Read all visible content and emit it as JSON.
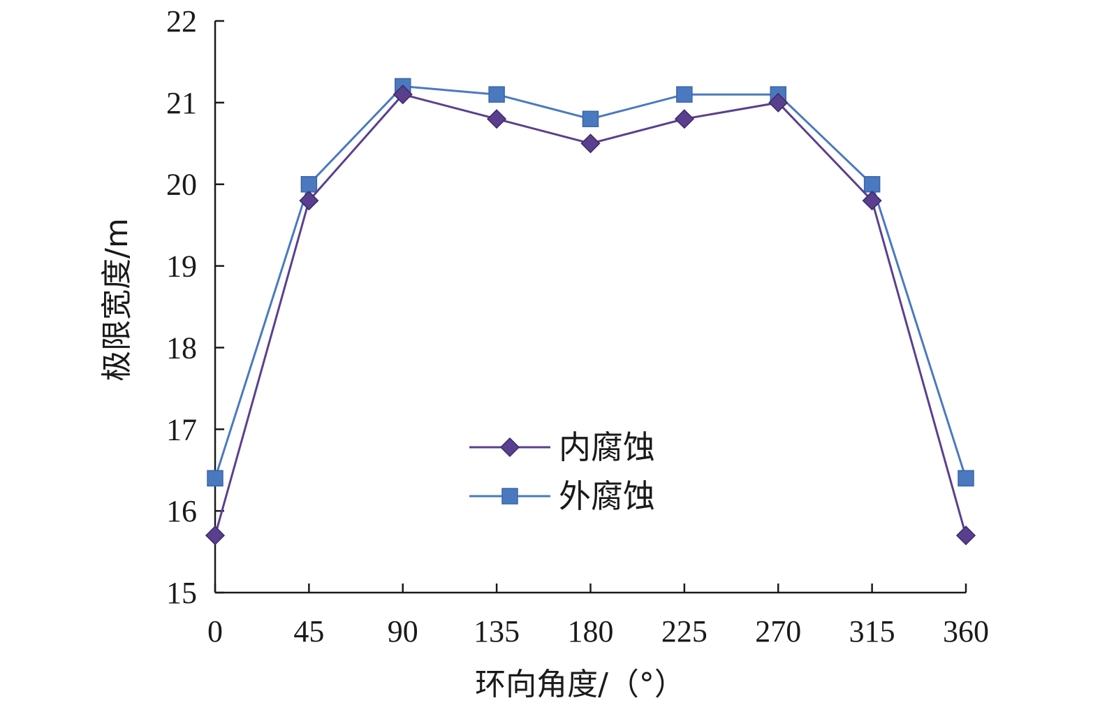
{
  "chart_data": {
    "type": "line",
    "xlabel": "环向角度/（°）",
    "ylabel": "极限宽度/m",
    "x": [
      0,
      45,
      90,
      135,
      180,
      225,
      270,
      315,
      360
    ],
    "xlim": [
      0,
      360
    ],
    "ylim": [
      15,
      22
    ],
    "yticks": [
      15,
      16,
      17,
      18,
      19,
      20,
      21,
      22
    ],
    "grid": false,
    "legend_position": "center",
    "series": [
      {
        "name": "内腐蚀",
        "marker": "diamond",
        "color": "#5a3f8f",
        "values": [
          15.7,
          19.8,
          21.1,
          20.8,
          20.5,
          20.8,
          21.0,
          19.8,
          15.7
        ]
      },
      {
        "name": "外腐蚀",
        "marker": "square",
        "color": "#4a79c0",
        "values": [
          16.4,
          20.0,
          21.2,
          21.1,
          20.8,
          21.1,
          21.1,
          20.0,
          16.4
        ]
      }
    ]
  }
}
